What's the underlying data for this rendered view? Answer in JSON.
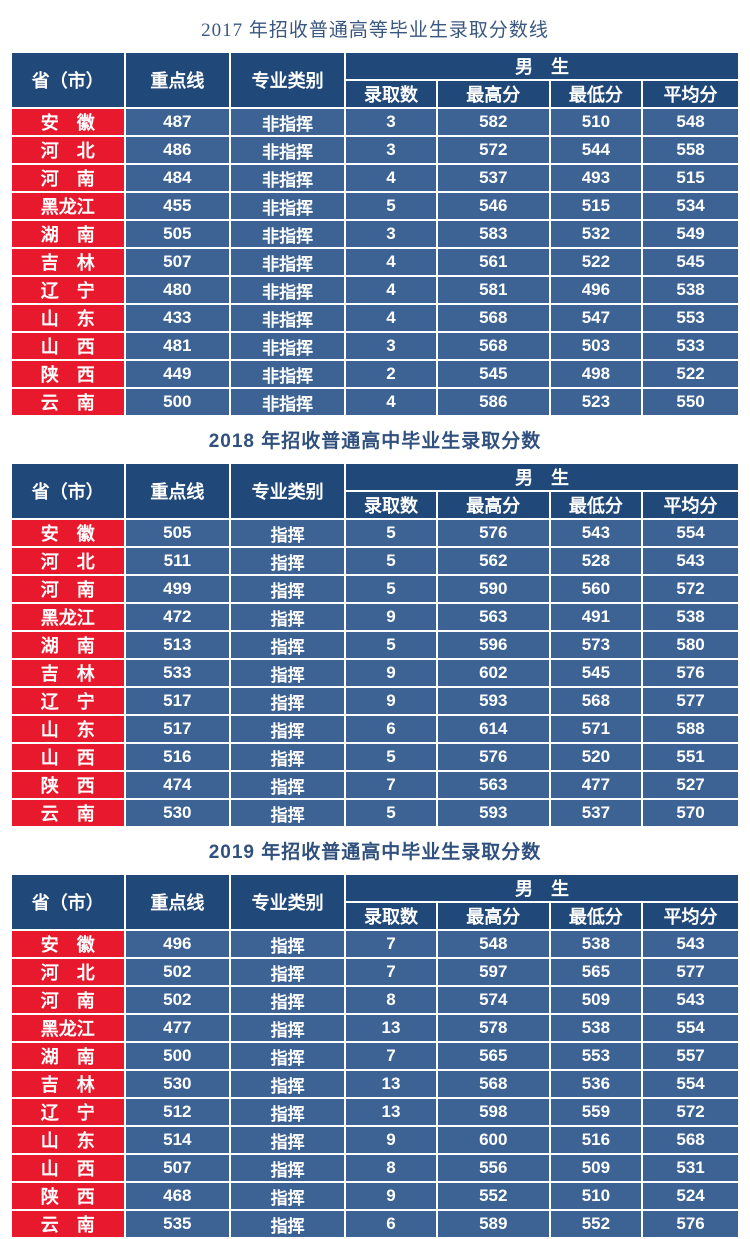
{
  "columns": {
    "province": "省（市）",
    "key_line": "重点线",
    "category": "专业类别",
    "male_group": "男　生",
    "sub": [
      "录取数",
      "最高分",
      "最低分",
      "平均分"
    ]
  },
  "colors": {
    "header_bg": "#20497a",
    "cell_bg": "#3c6394",
    "province_bg": "#e8192d",
    "title_color": "#30507e",
    "text_color": "#ffffff"
  },
  "tables": [
    {
      "title": "2017 年招收普通高等毕业生录取分数线",
      "rows": [
        [
          "安　徽",
          "487",
          "非指挥",
          "3",
          "582",
          "510",
          "548"
        ],
        [
          "河　北",
          "486",
          "非指挥",
          "3",
          "572",
          "544",
          "558"
        ],
        [
          "河　南",
          "484",
          "非指挥",
          "4",
          "537",
          "493",
          "515"
        ],
        [
          "黑龙江",
          "455",
          "非指挥",
          "5",
          "546",
          "515",
          "534"
        ],
        [
          "湖　南",
          "505",
          "非指挥",
          "3",
          "583",
          "532",
          "549"
        ],
        [
          "吉　林",
          "507",
          "非指挥",
          "4",
          "561",
          "522",
          "545"
        ],
        [
          "辽　宁",
          "480",
          "非指挥",
          "4",
          "581",
          "496",
          "538"
        ],
        [
          "山　东",
          "433",
          "非指挥",
          "4",
          "568",
          "547",
          "553"
        ],
        [
          "山　西",
          "481",
          "非指挥",
          "3",
          "568",
          "503",
          "533"
        ],
        [
          "陕　西",
          "449",
          "非指挥",
          "2",
          "545",
          "498",
          "522"
        ],
        [
          "云　南",
          "500",
          "非指挥",
          "4",
          "586",
          "523",
          "550"
        ]
      ]
    },
    {
      "title": "2018 年招收普通高中毕业生录取分数",
      "rows": [
        [
          "安　徽",
          "505",
          "指挥",
          "5",
          "576",
          "543",
          "554"
        ],
        [
          "河　北",
          "511",
          "指挥",
          "5",
          "562",
          "528",
          "543"
        ],
        [
          "河　南",
          "499",
          "指挥",
          "5",
          "590",
          "560",
          "572"
        ],
        [
          "黑龙江",
          "472",
          "指挥",
          "9",
          "563",
          "491",
          "538"
        ],
        [
          "湖　南",
          "513",
          "指挥",
          "5",
          "596",
          "573",
          "580"
        ],
        [
          "吉　林",
          "533",
          "指挥",
          "9",
          "602",
          "545",
          "576"
        ],
        [
          "辽　宁",
          "517",
          "指挥",
          "9",
          "593",
          "568",
          "577"
        ],
        [
          "山　东",
          "517",
          "指挥",
          "6",
          "614",
          "571",
          "588"
        ],
        [
          "山　西",
          "516",
          "指挥",
          "5",
          "576",
          "520",
          "551"
        ],
        [
          "陕　西",
          "474",
          "指挥",
          "7",
          "563",
          "477",
          "527"
        ],
        [
          "云　南",
          "530",
          "指挥",
          "5",
          "593",
          "537",
          "570"
        ]
      ]
    },
    {
      "title": "2019 年招收普通高中毕业生录取分数",
      "rows": [
        [
          "安　徽",
          "496",
          "指挥",
          "7",
          "548",
          "538",
          "543"
        ],
        [
          "河　北",
          "502",
          "指挥",
          "7",
          "597",
          "565",
          "577"
        ],
        [
          "河　南",
          "502",
          "指挥",
          "8",
          "574",
          "509",
          "543"
        ],
        [
          "黑龙江",
          "477",
          "指挥",
          "13",
          "578",
          "538",
          "554"
        ],
        [
          "湖　南",
          "500",
          "指挥",
          "7",
          "565",
          "553",
          "557"
        ],
        [
          "吉　林",
          "530",
          "指挥",
          "13",
          "568",
          "536",
          "554"
        ],
        [
          "辽　宁",
          "512",
          "指挥",
          "13",
          "598",
          "559",
          "572"
        ],
        [
          "山　东",
          "514",
          "指挥",
          "9",
          "600",
          "516",
          "568"
        ],
        [
          "山　西",
          "507",
          "指挥",
          "8",
          "556",
          "509",
          "531"
        ],
        [
          "陕　西",
          "468",
          "指挥",
          "9",
          "552",
          "510",
          "524"
        ],
        [
          "云　南",
          "535",
          "指挥",
          "6",
          "589",
          "552",
          "576"
        ]
      ]
    }
  ]
}
